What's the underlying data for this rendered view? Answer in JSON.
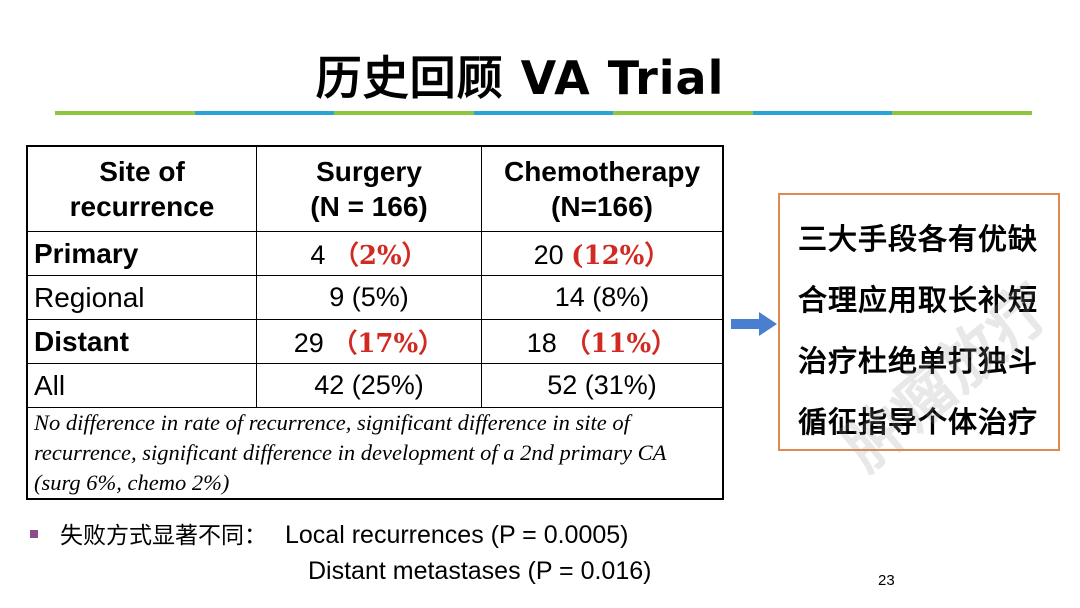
{
  "title": "历史回顾  VA Trial",
  "rule_colors": [
    "#8dc63f",
    "#29a3d8",
    "#8dc63f",
    "#29a3d8",
    "#8dc63f",
    "#29a3d8",
    "#8dc63f"
  ],
  "table": {
    "headers": {
      "site": [
        "Site of",
        "recurrence"
      ],
      "surgery": [
        "Surgery",
        "(N = 166)"
      ],
      "chemo": [
        "Chemotherapy",
        "(N=166)"
      ]
    },
    "rows": [
      {
        "label": "Primary",
        "bold": true,
        "surgery": {
          "n": "4",
          "pct": "（2%）",
          "red": true
        },
        "chemo": {
          "n": "20",
          "pct": "(12%）",
          "red": true
        }
      },
      {
        "label": "Regional",
        "bold": false,
        "surgery": {
          "n": "9",
          "pct": "(5%)",
          "red": false
        },
        "chemo": {
          "n": "14",
          "pct": "(8%)",
          "red": false
        }
      },
      {
        "label": "Distant",
        "bold": true,
        "surgery": {
          "n": "29",
          "pct": "（17%）",
          "red": true
        },
        "chemo": {
          "n": "18",
          "pct": "（11%）",
          "red": true
        }
      },
      {
        "label": "All",
        "bold": false,
        "surgery": {
          "n": "42",
          "pct": "(25%)",
          "red": false
        },
        "chemo": {
          "n": "52",
          "pct": "(31%)",
          "red": false
        }
      }
    ],
    "note": "No difference in rate of recurrence, significant difference in site of recurrence, significant difference in development of a 2nd primary CA (surg 6%, chemo 2%)"
  },
  "box_lines": [
    "三大手段各有优缺",
    "合理应用取长补短",
    "治疗杜绝单打独斗",
    "循征指导个体治疗"
  ],
  "bullet": {
    "lead": "失败方式显著不同：",
    "line1": "Local recurrences (P = 0.0005)",
    "line2": "Distant metastases (P = 0.016)"
  },
  "page_number": "23",
  "watermark": "肿瘤放疗",
  "colors": {
    "red_accent": "#d12a22",
    "box_border": "#e08a4e",
    "arrow": "#4a7fd0",
    "bullet": "#8a4f8b"
  }
}
